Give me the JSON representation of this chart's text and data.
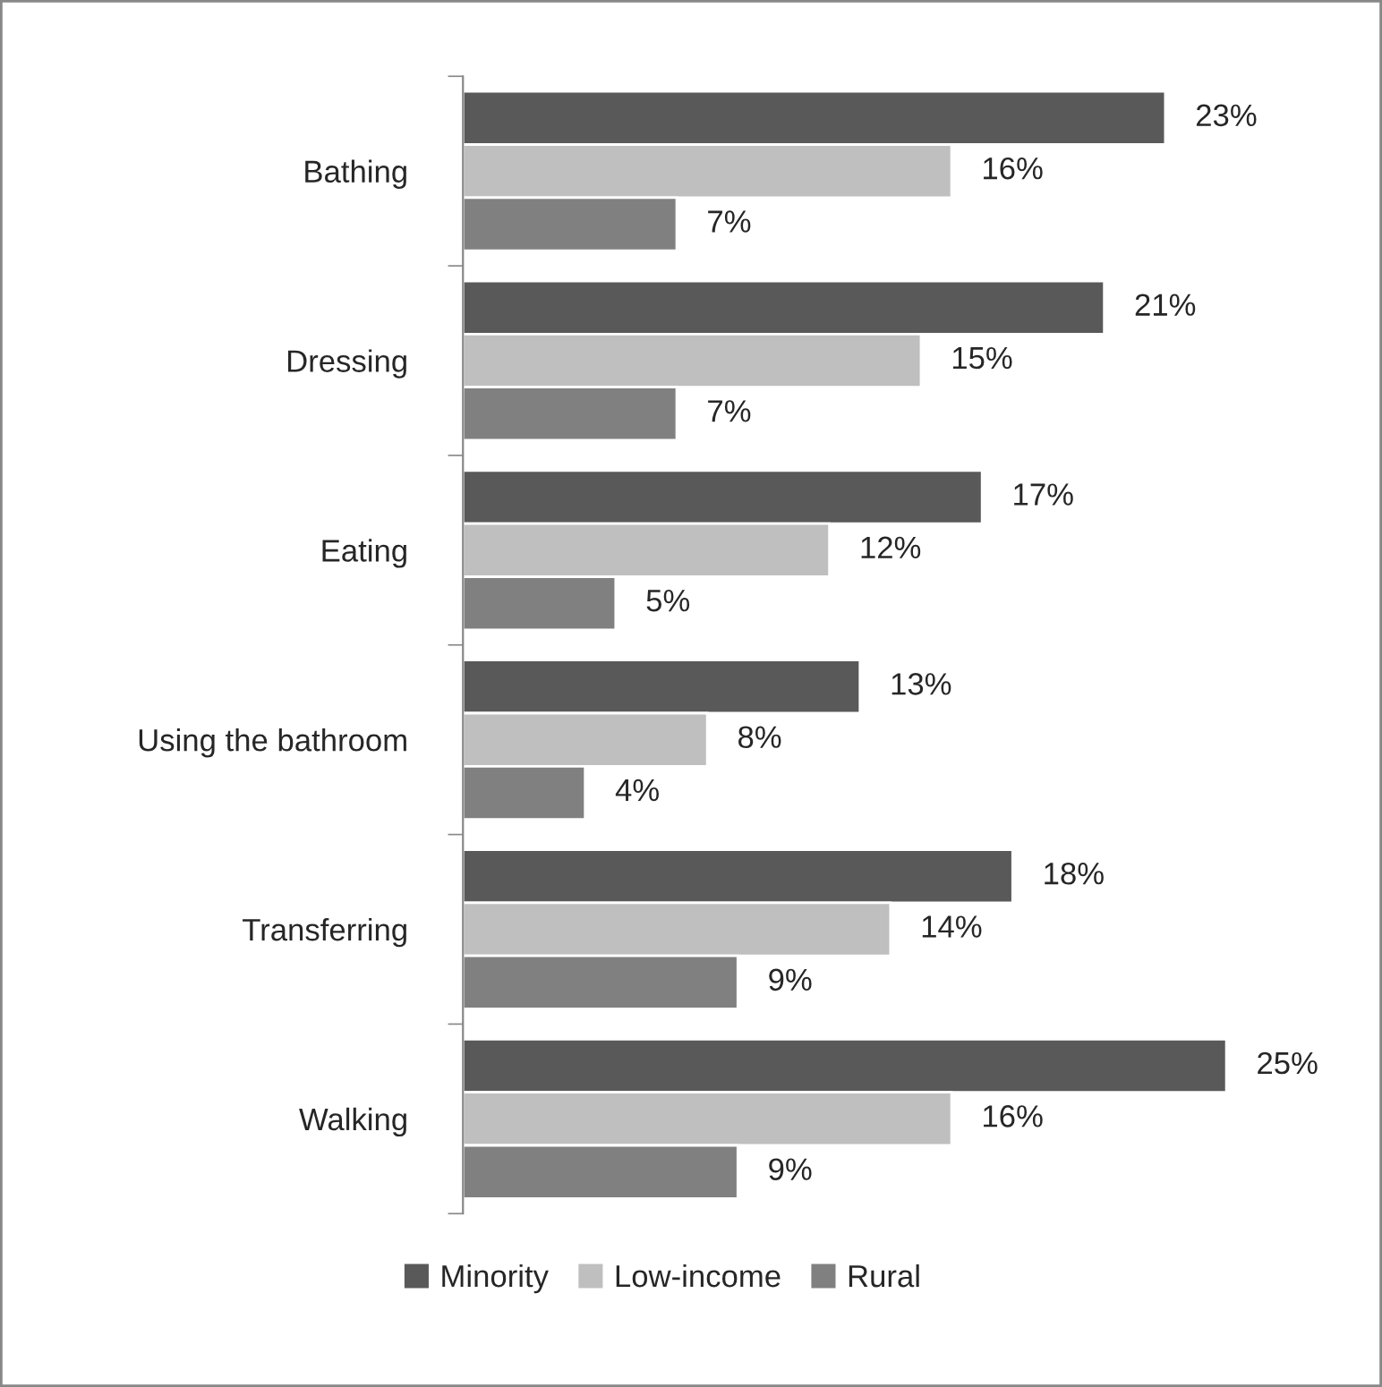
{
  "chart_data": {
    "type": "bar",
    "orientation": "horizontal",
    "categories": [
      "Bathing",
      "Dressing",
      "Eating",
      "Using the bathroom",
      "Transferring",
      "Walking"
    ],
    "series": [
      {
        "name": "Minority",
        "color": "#595959",
        "values": [
          23,
          21,
          17,
          13,
          18,
          25
        ],
        "value_labels": [
          "23%",
          "21%",
          "17%",
          "13%",
          "18%",
          "25%"
        ]
      },
      {
        "name": "Low-income",
        "color": "#bfbfbf",
        "values": [
          16,
          15,
          12,
          8,
          14,
          16
        ],
        "value_labels": [
          "16%",
          "15%",
          "12%",
          "8%",
          "14%",
          "16%"
        ]
      },
      {
        "name": "Rural",
        "color": "#808080",
        "values": [
          7,
          7,
          5,
          4,
          9,
          9
        ],
        "value_labels": [
          "7%",
          "7%",
          "5%",
          "4%",
          "9%",
          "9%"
        ]
      }
    ],
    "legend": "bottom",
    "grid": false
  }
}
